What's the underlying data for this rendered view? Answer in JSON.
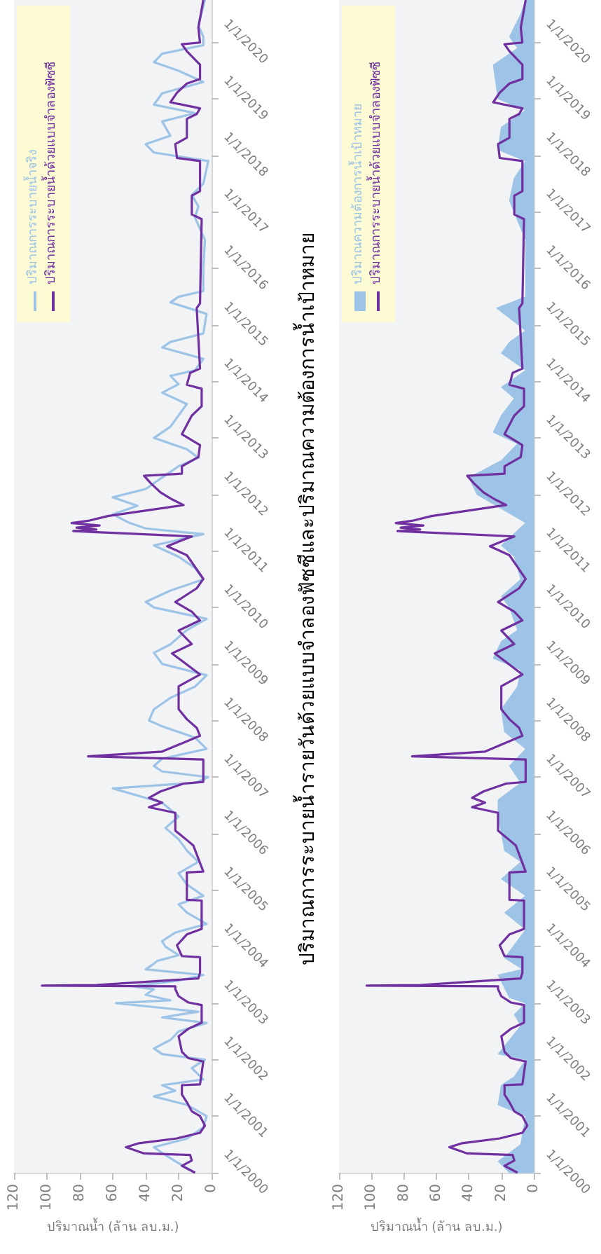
{
  "chart_data": [
    {
      "type": "line",
      "orientation": "horizontal",
      "xlabel": "ปริมาณน้ำ (ล้าน ลบ.ม.)",
      "ylim": [
        "2000-01-01",
        "2020-10-01"
      ],
      "yticks": [
        {
          "value": "2000-01-01",
          "label": "1/1/2000"
        },
        {
          "value": "2001-01-01",
          "label": "1/1/2001"
        },
        {
          "value": "2002-01-01",
          "label": "1/1/2002"
        },
        {
          "value": "2003-01-01",
          "label": "1/1/2003"
        },
        {
          "value": "2004-01-01",
          "label": "1/1/2004"
        },
        {
          "value": "2005-01-01",
          "label": "1/1/2005"
        },
        {
          "value": "2006-01-01",
          "label": "1/1/2006"
        },
        {
          "value": "2007-01-01",
          "label": "1/1/2007"
        },
        {
          "value": "2008-01-01",
          "label": "1/1/2008"
        },
        {
          "value": "2009-01-01",
          "label": "1/1/2009"
        },
        {
          "value": "2010-01-01",
          "label": "1/1/2010"
        },
        {
          "value": "2011-01-01",
          "label": "1/1/2011"
        },
        {
          "value": "2012-01-01",
          "label": "1/1/2012"
        },
        {
          "value": "2013-01-01",
          "label": "1/1/2013"
        },
        {
          "value": "2014-01-01",
          "label": "1/1/2014"
        },
        {
          "value": "2015-01-01",
          "label": "1/1/2015"
        },
        {
          "value": "2016-01-01",
          "label": "1/1/2016"
        },
        {
          "value": "2017-01-01",
          "label": "1/1/2017"
        },
        {
          "value": "2018-01-01",
          "label": "1/1/2018"
        },
        {
          "value": "2019-01-01",
          "label": "1/1/2019"
        },
        {
          "value": "2020-01-01",
          "label": "1/1/2020"
        }
      ],
      "xlim": [
        120,
        0
      ],
      "xticks": [
        0,
        20,
        40,
        60,
        80,
        100,
        120
      ],
      "grid": false,
      "legend": "top left",
      "series": [
        {
          "name": "ปริมาณการระบายน้ำจริง",
          "type": "line",
          "color": "#9dc3e6",
          "x": [
            "2000-01-01",
            "2000-03-15",
            "2000-05-08",
            "2000-06-14",
            "2000-08-08",
            "2000-10-20",
            "2001-01-01",
            "2001-03-15",
            "2001-05-08",
            "2001-06-14",
            "2001-07-20",
            "2001-08-26",
            "2001-11-07",
            "2002-01-01",
            "2002-02-06",
            "2002-03-14",
            "2002-05-08",
            "2002-07-02",
            "2002-08-26",
            "2002-10-01",
            "2002-11-07",
            "2003-01-01",
            "2003-01-19",
            "2003-02-24",
            "2003-04-01",
            "2003-04-20",
            "2003-05-27",
            "2003-07-02",
            "2003-08-08",
            "2003-09-13",
            "2003-10-01",
            "2003-11-07",
            "2004-01-01",
            "2004-02-06",
            "2004-04-01",
            "2004-05-27",
            "2004-08-08",
            "2004-10-01",
            "2004-11-25",
            "2005-02-06",
            "2005-04-20",
            "2005-07-02",
            "2005-09-13",
            "2005-11-25",
            "2006-02-06",
            "2006-04-20",
            "2006-07-20",
            "2006-10-20",
            "2006-11-25",
            "2007-01-01",
            "2007-02-06",
            "2007-03-14",
            "2007-04-30",
            "2007-07-02",
            "2007-09-13",
            "2007-11-25",
            "2008-01-01",
            "2008-03-14",
            "2008-05-27",
            "2008-08-08",
            "2008-10-20",
            "2009-01-01",
            "2009-03-14",
            "2009-05-08",
            "2009-08-08",
            "2009-10-20",
            "2010-01-01",
            "2010-02-06",
            "2010-04-20",
            "2010-07-02",
            "2010-09-13",
            "2010-11-25",
            "2011-02-06",
            "2011-04-20",
            "2011-05-27",
            "2011-07-02",
            "2011-08-26",
            "2011-10-20",
            "2011-12-14",
            "2012-02-06",
            "2012-04-20",
            "2012-07-02",
            "2012-08-26",
            "2012-10-20",
            "2013-01-01",
            "2013-03-14",
            "2013-05-27",
            "2013-08-08",
            "2013-10-20",
            "2013-12-14",
            "2014-02-06",
            "2014-03-14",
            "2014-05-27",
            "2014-08-08",
            "2014-09-13",
            "2014-11-07",
            "2015-03-14",
            "2015-05-27",
            "2015-07-02",
            "2015-08-08",
            "2016-01-01",
            "2016-07-02",
            "2016-11-25",
            "2017-02-06",
            "2017-04-20",
            "2017-07-02",
            "2017-11-25",
            "2018-01-19",
            "2018-03-14",
            "2018-05-08",
            "2018-08-08",
            "2018-10-01",
            "2018-11-25",
            "2019-02-06",
            "2019-04-20",
            "2019-07-02",
            "2019-08-26",
            "2019-10-20",
            "2019-12-14",
            "2020-02-06",
            "2020-04-20",
            "2020-10-01"
          ],
          "values": [
            10,
            22,
            30,
            35,
            15,
            5,
            3,
            15,
            35,
            22,
            30,
            5,
            12,
            4,
            30,
            35,
            25,
            20,
            3,
            30,
            8,
            58,
            25,
            40,
            35,
            48,
            20,
            5,
            40,
            35,
            33,
            20,
            28,
            30,
            22,
            3,
            15,
            20,
            5,
            15,
            20,
            8,
            15,
            20,
            28,
            20,
            30,
            60,
            10,
            2,
            30,
            35,
            30,
            3,
            10,
            30,
            38,
            35,
            25,
            10,
            3,
            30,
            35,
            25,
            15,
            3,
            35,
            40,
            25,
            5,
            10,
            20,
            35,
            5,
            40,
            50,
            60,
            45,
            60,
            40,
            30,
            20,
            8,
            15,
            35,
            25,
            20,
            15,
            30,
            20,
            25,
            10,
            5,
            30,
            25,
            5,
            3,
            25,
            20,
            5,
            5,
            4,
            10,
            8,
            12,
            5,
            2,
            35,
            40,
            25,
            30,
            10,
            35,
            30,
            5,
            20,
            35,
            30,
            5,
            5,
            8,
            4
          ]
        },
        {
          "name": "ปริมาณการระบายน้ำด้วยแบบจำลองฟัซซี",
          "type": "line",
          "color": "#7030a0",
          "x": [
            "2000-01-01",
            "2000-02-15",
            "2000-03-20",
            "2000-04-25",
            "2000-05-05",
            "2000-06-14",
            "2000-07-10",
            "2000-08-10",
            "2000-09-15",
            "2000-11-01",
            "2001-01-01",
            "2001-02-01",
            "2001-04-01",
            "2001-05-20",
            "2001-07-20",
            "2001-07-25",
            "2001-12-20",
            "2002-01-10",
            "2002-02-20",
            "2002-06-01",
            "2002-07-20",
            "2002-08-28",
            "2002-12-20",
            "2003-01-05",
            "2003-02-15",
            "2003-04-01",
            "2003-04-20",
            "2003-04-24",
            "2003-04-28",
            "2003-06-10",
            "2003-07-15",
            "2003-10-25",
            "2003-11-01",
            "2004-01-10",
            "2004-03-20",
            "2004-04-25",
            "2004-10-25",
            "2004-10-30",
            "2005-04-25",
            "2005-04-30",
            "2005-10-15",
            "2005-11-20",
            "2006-01-20",
            "2006-05-15",
            "2006-06-20",
            "2006-07-20",
            "2006-08-20",
            "2006-09-30",
            "2006-11-20",
            "2006-12-01",
            "2007-04-25",
            "2007-05-15",
            "2007-06-15",
            "2007-09-25",
            "2007-11-15",
            "2008-01-10",
            "2008-03-15",
            "2008-08-10",
            "2008-10-25",
            "2009-03-10",
            "2009-05-10",
            "2009-08-05",
            "2009-10-10",
            "2009-12-05",
            "2010-02-05",
            "2010-05-05",
            "2010-07-05",
            "2010-12-05",
            "2011-02-01",
            "2011-04-05",
            "2011-05-10",
            "2011-05-20",
            "2011-06-01",
            "2011-06-15",
            "2011-07-01",
            "2011-07-15",
            "2011-08-15",
            "2011-10-25",
            "2011-12-01",
            "2012-01-15",
            "2012-03-15",
            "2012-05-01",
            "2012-05-15",
            "2012-07-01",
            "2012-08-30",
            "2012-11-15",
            "2013-01-25",
            "2013-05-25",
            "2013-07-25",
            "2013-11-15",
            "2013-12-10",
            "2014-02-25",
            "2014-03-25",
            "2015-04-20",
            "2015-05-20",
            "2016-11-15",
            "2016-12-15",
            "2017-04-15",
            "2017-05-15",
            "2017-11-25",
            "2017-12-15",
            "2018-03-15",
            "2018-04-25",
            "2018-08-25",
            "2018-09-25",
            "2018-11-01",
            "2018-12-10",
            "2019-02-10",
            "2019-04-10",
            "2019-05-10",
            "2019-08-10",
            "2019-11-05",
            "2019-12-20",
            "2019-12-31",
            "2020-04-05",
            "2020-10-01"
          ],
          "values": [
            10,
            18,
            12,
            13,
            41,
            52,
            44,
            21,
            7,
            4,
            7,
            12,
            15,
            18,
            18,
            7,
            5,
            14,
            18,
            20,
            14,
            6,
            6,
            14,
            20,
            22,
            22,
            103,
            70,
            8,
            7,
            7,
            18,
            21,
            15,
            6,
            6,
            15,
            15,
            5,
            11,
            15,
            22,
            22,
            38,
            30,
            38,
            31,
            17,
            5,
            5,
            75,
            30,
            7,
            9,
            15,
            20,
            20,
            7,
            24,
            12,
            20,
            7,
            12,
            22,
            9,
            5,
            15,
            27,
            12,
            84,
            70,
            82,
            68,
            85,
            75,
            63,
            17,
            24,
            31,
            37,
            41,
            18,
            18,
            8,
            7,
            18,
            12,
            6,
            6,
            15,
            13,
            7,
            9,
            7,
            6,
            12,
            12,
            7,
            7,
            21,
            22,
            15,
            15,
            9,
            7,
            25,
            21,
            15,
            7,
            7,
            15,
            18,
            7,
            8,
            5
          ]
        }
      ]
    },
    {
      "type": "line",
      "orientation": "horizontal",
      "title": "ปริมาณการระบายน้ำรายวันด้วยแบบจำลองฟัซซีและปริมาณความต้องการน้ำเป้าหมาย",
      "xlabel": "ปริมาณน้ำ (ล้าน ลบ.ม.)",
      "ylim": [
        "2000-01-01",
        "2020-10-01"
      ],
      "yticks": [
        {
          "value": "2000-01-01",
          "label": "1/1/2000"
        },
        {
          "value": "2001-01-01",
          "label": "1/1/2001"
        },
        {
          "value": "2002-01-01",
          "label": "1/1/2002"
        },
        {
          "value": "2003-01-01",
          "label": "1/1/2003"
        },
        {
          "value": "2004-01-01",
          "label": "1/1/2004"
        },
        {
          "value": "2005-01-01",
          "label": "1/1/2005"
        },
        {
          "value": "2006-01-01",
          "label": "1/1/2006"
        },
        {
          "value": "2007-01-01",
          "label": "1/1/2007"
        },
        {
          "value": "2008-01-01",
          "label": "1/1/2008"
        },
        {
          "value": "2009-01-01",
          "label": "1/1/2009"
        },
        {
          "value": "2010-01-01",
          "label": "1/1/2010"
        },
        {
          "value": "2011-01-01",
          "label": "1/1/2011"
        },
        {
          "value": "2012-01-01",
          "label": "1/1/2012"
        },
        {
          "value": "2013-01-01",
          "label": "1/1/2013"
        },
        {
          "value": "2014-01-01",
          "label": "1/1/2014"
        },
        {
          "value": "2015-01-01",
          "label": "1/1/2015"
        },
        {
          "value": "2016-01-01",
          "label": "1/1/2016"
        },
        {
          "value": "2017-01-01",
          "label": "1/1/2017"
        },
        {
          "value": "2018-01-01",
          "label": "1/1/2018"
        },
        {
          "value": "2019-01-01",
          "label": "1/1/2019"
        },
        {
          "value": "2020-01-01",
          "label": "1/1/2020"
        }
      ],
      "xlim": [
        120,
        0
      ],
      "xticks": [
        0,
        20,
        40,
        60,
        80,
        100,
        120
      ],
      "grid": false,
      "legend": "top left",
      "series": [
        {
          "name": "ปริมาณความต้องการน้ำเป้าหมาย",
          "type": "area",
          "color": "#9dc3e6",
          "x": [
            "2000-01-01",
            "2000-03-15",
            "2000-07-02",
            "2001-01-01",
            "2001-03-14",
            "2001-07-20",
            "2001-09-13",
            "2002-01-01",
            "2002-02-06",
            "2002-08-08",
            "2002-10-20",
            "2003-01-01",
            "2003-02-06",
            "2003-07-02",
            "2003-08-08",
            "2003-10-20",
            "2004-04-20",
            "2004-08-08",
            "2004-11-25",
            "2005-03-14",
            "2005-07-02",
            "2005-09-13",
            "2006-01-01",
            "2006-04-20",
            "2006-08-08",
            "2006-11-25",
            "2007-03-14",
            "2007-07-02",
            "2007-10-20",
            "2008-03-14",
            "2008-08-08",
            "2008-11-25",
            "2009-02-06",
            "2009-05-27",
            "2009-08-08",
            "2010-01-01",
            "2010-03-14",
            "2010-07-02",
            "2010-11-25",
            "2011-02-06",
            "2011-07-02",
            "2012-01-01",
            "2012-04-20",
            "2012-08-08",
            "2012-11-25",
            "2013-02-06",
            "2013-05-27",
            "2013-09-13",
            "2013-11-25",
            "2014-03-14",
            "2014-07-02",
            "2014-09-13",
            "2014-11-25",
            "2015-04-20",
            "2015-07-02",
            "2016-01-01",
            "2016-07-02",
            "2017-03-14",
            "2017-08-08",
            "2017-11-25",
            "2018-02-06",
            "2018-07-02",
            "2018-10-20",
            "2019-01-01",
            "2019-08-08",
            "2019-11-25",
            "2020-02-06",
            "2020-07-02",
            "2020-10-01"
          ],
          "values": [
            15,
            22,
            8,
            5,
            22,
            20,
            12,
            5,
            22,
            8,
            12,
            5,
            15,
            22,
            7,
            18,
            5,
            18,
            5,
            20,
            8,
            18,
            20,
            22,
            22,
            8,
            15,
            5,
            18,
            20,
            10,
            8,
            25,
            20,
            10,
            15,
            20,
            8,
            12,
            20,
            5,
            35,
            40,
            20,
            10,
            25,
            20,
            12,
            20,
            5,
            20,
            15,
            5,
            23,
            5,
            5,
            5,
            15,
            12,
            5,
            22,
            20,
            5,
            22,
            25,
            10,
            15,
            8,
            5
          ]
        },
        {
          "name": "ปริมาณการระบายน้ำด้วยแบบจำลองฟัซซี",
          "type": "line",
          "color": "#7030a0",
          "x": [
            "2000-01-01",
            "2000-02-15",
            "2000-03-20",
            "2000-04-25",
            "2000-05-05",
            "2000-06-14",
            "2000-07-10",
            "2000-08-10",
            "2000-09-15",
            "2000-11-01",
            "2001-01-01",
            "2001-02-01",
            "2001-04-01",
            "2001-05-20",
            "2001-07-20",
            "2001-07-25",
            "2001-12-20",
            "2002-01-10",
            "2002-02-20",
            "2002-06-01",
            "2002-07-20",
            "2002-08-28",
            "2002-12-20",
            "2003-01-05",
            "2003-02-15",
            "2003-04-01",
            "2003-04-20",
            "2003-04-24",
            "2003-04-28",
            "2003-06-10",
            "2003-07-15",
            "2003-10-25",
            "2003-11-01",
            "2004-01-10",
            "2004-03-20",
            "2004-04-25",
            "2004-10-25",
            "2004-10-30",
            "2005-04-25",
            "2005-04-30",
            "2005-10-15",
            "2005-11-20",
            "2006-01-20",
            "2006-05-15",
            "2006-06-20",
            "2006-07-20",
            "2006-08-20",
            "2006-09-30",
            "2006-11-20",
            "2006-12-01",
            "2007-04-25",
            "2007-05-15",
            "2007-06-15",
            "2007-09-25",
            "2007-11-15",
            "2008-01-10",
            "2008-03-15",
            "2008-08-10",
            "2008-10-25",
            "2009-03-10",
            "2009-05-10",
            "2009-08-05",
            "2009-10-10",
            "2009-12-05",
            "2010-02-05",
            "2010-05-05",
            "2010-07-05",
            "2010-12-05",
            "2011-02-01",
            "2011-04-05",
            "2011-05-10",
            "2011-05-20",
            "2011-06-01",
            "2011-06-15",
            "2011-07-01",
            "2011-07-15",
            "2011-08-15",
            "2011-10-25",
            "2011-12-01",
            "2012-01-15",
            "2012-03-15",
            "2012-05-01",
            "2012-05-15",
            "2012-07-01",
            "2012-08-30",
            "2012-11-15",
            "2013-01-25",
            "2013-05-25",
            "2013-07-25",
            "2013-11-15",
            "2013-12-10",
            "2014-02-25",
            "2014-03-25",
            "2015-04-20",
            "2015-05-20",
            "2016-11-15",
            "2016-12-15",
            "2017-04-15",
            "2017-05-15",
            "2017-11-25",
            "2017-12-15",
            "2018-03-15",
            "2018-04-25",
            "2018-08-25",
            "2018-09-25",
            "2018-11-01",
            "2018-12-10",
            "2019-02-10",
            "2019-04-10",
            "2019-05-10",
            "2019-08-10",
            "2019-11-05",
            "2019-12-20",
            "2019-12-31",
            "2020-04-05",
            "2020-10-01"
          ],
          "values": [
            10,
            18,
            12,
            13,
            41,
            52,
            44,
            21,
            7,
            4,
            7,
            12,
            15,
            18,
            18,
            7,
            5,
            14,
            18,
            20,
            14,
            6,
            6,
            14,
            20,
            22,
            22,
            103,
            70,
            8,
            7,
            7,
            18,
            21,
            15,
            6,
            6,
            15,
            15,
            5,
            11,
            15,
            22,
            22,
            38,
            30,
            38,
            31,
            17,
            5,
            5,
            75,
            30,
            7,
            9,
            15,
            20,
            20,
            7,
            24,
            12,
            20,
            7,
            12,
            22,
            9,
            5,
            15,
            27,
            12,
            84,
            70,
            82,
            68,
            85,
            75,
            63,
            17,
            24,
            31,
            37,
            41,
            18,
            18,
            8,
            7,
            18,
            12,
            6,
            6,
            15,
            13,
            7,
            9,
            7,
            6,
            12,
            12,
            7,
            7,
            21,
            22,
            15,
            15,
            9,
            7,
            25,
            21,
            15,
            7,
            7,
            15,
            18,
            7,
            8,
            5
          ]
        }
      ]
    }
  ]
}
